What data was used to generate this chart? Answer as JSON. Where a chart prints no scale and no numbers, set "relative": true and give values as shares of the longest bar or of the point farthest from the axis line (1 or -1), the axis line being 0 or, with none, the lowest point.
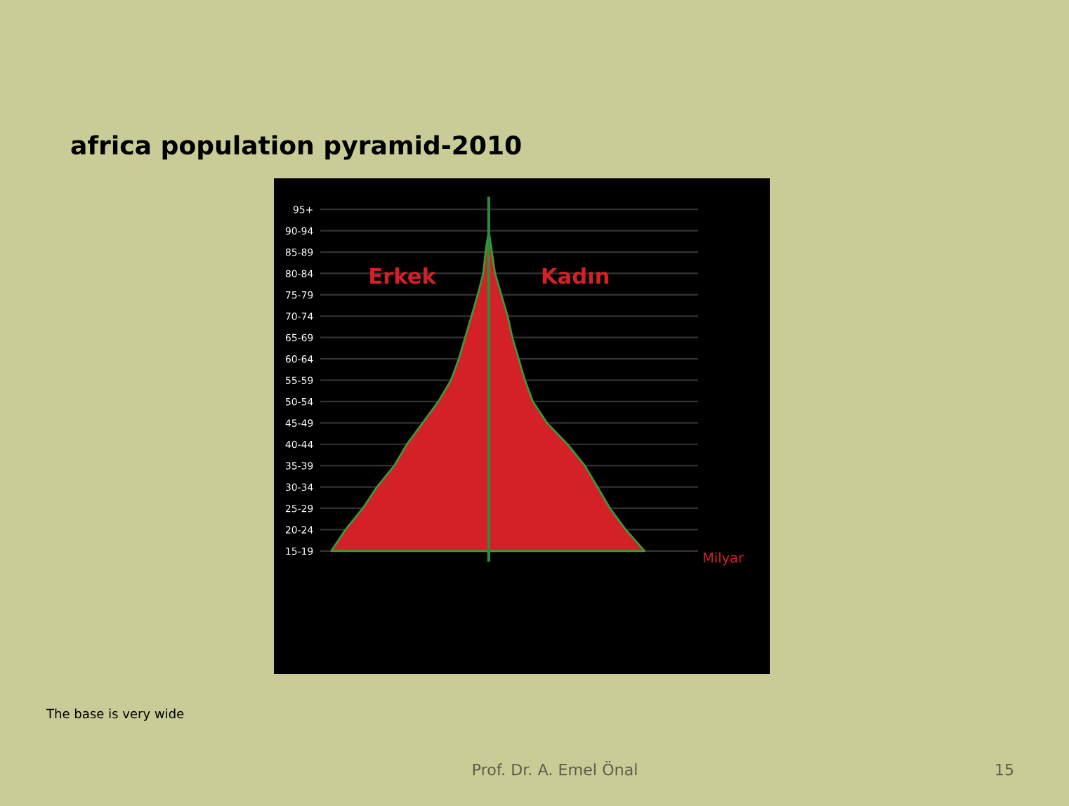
{
  "chart_data": {
    "type": "area",
    "orientation": "horizontal",
    "relative": true,
    "title": "africa population pyramid-2010",
    "ref_lines": [
      {
        "axis": "x",
        "value": 0,
        "color": "#2e8b3a"
      }
    ],
    "categories": [
      "95+",
      "90-94",
      "85-89",
      "80-84",
      "75-79",
      "70-74",
      "65-69",
      "60-64",
      "55-59",
      "50-54",
      "45-49",
      "40-44",
      "35-39",
      "30-34",
      "25-29",
      "20-24",
      "15-19"
    ],
    "series": [
      {
        "name": "Erkek",
        "color": "#d42027",
        "values": [
          0,
          0,
          -0.02,
          -0.035,
          -0.07,
          -0.11,
          -0.15,
          -0.19,
          -0.24,
          -0.32,
          -0.42,
          -0.52,
          -0.6,
          -0.71,
          -0.8,
          -0.91,
          -1
        ]
      },
      {
        "name": "Kadın",
        "color": "#d42027",
        "values": [
          0,
          0,
          0.02,
          0.04,
          0.08,
          0.12,
          0.15,
          0.19,
          0.23,
          0.28,
          0.37,
          0.5,
          0.61,
          0.69,
          0.77,
          0.87,
          0.99
        ]
      }
    ],
    "grid": "y",
    "legend": false,
    "annotations": [
      "The base is very wide",
      "Prof. Dr. A. Emel Önal",
      "15",
      "Milyar"
    ]
  }
}
